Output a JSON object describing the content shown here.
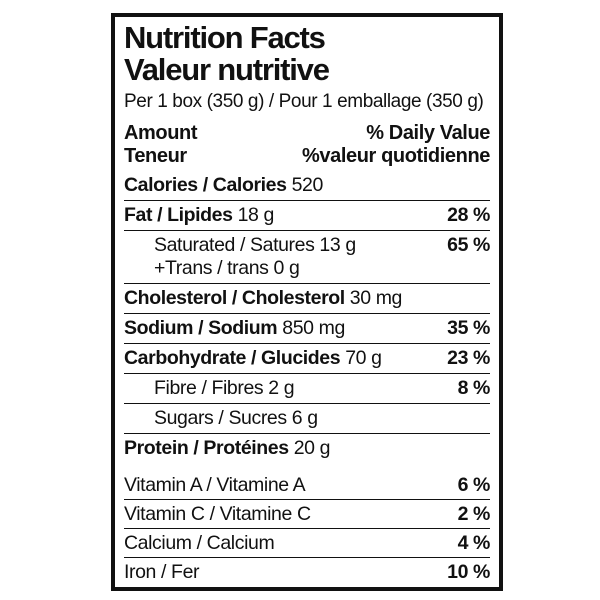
{
  "label": {
    "title_en": "Nutrition Facts",
    "title_fr": "Valeur nutritive",
    "serving_line": "Per 1 box (350 g) / Pour 1 emballage (350 g)",
    "header": {
      "amount_en": "Amount",
      "amount_fr": "Teneur",
      "daily_value_en": "% Daily Value",
      "daily_value_fr": "%valeur quotidienne"
    },
    "calories": {
      "name": "Calories / Calories",
      "value": "520"
    },
    "nutrients": [
      {
        "name": "Fat / Lipides",
        "amount": "18 g",
        "dv": "28 %"
      },
      {
        "name": "Saturated / Satures",
        "amount": "13 g",
        "line2": "+Trans / trans 0 g",
        "dv": "65 %"
      },
      {
        "name": "Cholesterol / Cholesterol",
        "amount": "30 mg",
        "dv": ""
      },
      {
        "name": "Sodium / Sodium",
        "amount": "850 mg",
        "dv": "35 %"
      },
      {
        "name": "Carbohydrate / Glucides",
        "amount": "70 g",
        "dv": "23 %"
      },
      {
        "name": "Fibre / Fibres",
        "amount": "2 g",
        "dv": "8 %"
      },
      {
        "name": "Sugars / Sucres",
        "amount": "6 g",
        "dv": ""
      },
      {
        "name": "Protein / Protéines",
        "amount": "20 g",
        "dv": ""
      }
    ],
    "micronutrients": [
      {
        "name": "Vitamin A / Vitamine A",
        "dv": "6 %"
      },
      {
        "name": "Vitamin C / Vitamine C",
        "dv": "2 %"
      },
      {
        "name": "Calcium / Calcium",
        "dv": "4 %"
      },
      {
        "name": "Iron / Fer",
        "dv": "10 %"
      }
    ],
    "colors": {
      "ink": "#111111",
      "background": "#ffffff"
    }
  }
}
